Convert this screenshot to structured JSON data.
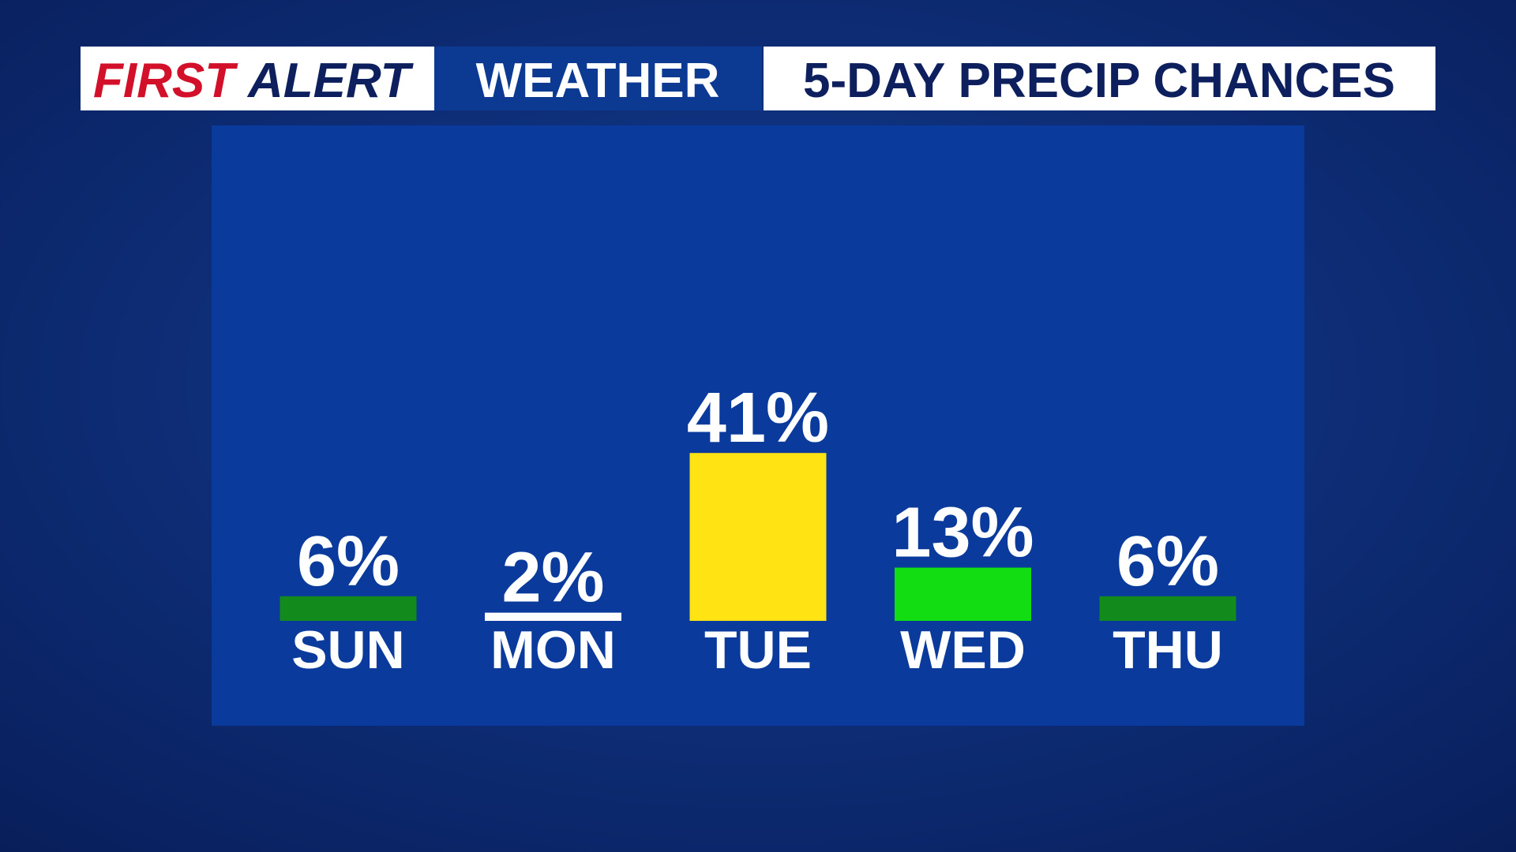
{
  "chart_data": {
    "type": "bar",
    "title": {
      "first": "FIRST",
      "alert": "ALERT",
      "weather": "WEATHER",
      "subtitle": "5-DAY PRECIP CHANCES"
    },
    "categories": [
      "SUN",
      "MON",
      "TUE",
      "WED",
      "THU"
    ],
    "values": [
      6,
      2,
      41,
      13,
      6
    ],
    "value_labels": [
      "6%",
      "2%",
      "41%",
      "13%",
      "6%"
    ],
    "colors": [
      "#138a1c",
      "#ffffff",
      "#ffe312",
      "#12dc12",
      "#138a1c"
    ]
  }
}
